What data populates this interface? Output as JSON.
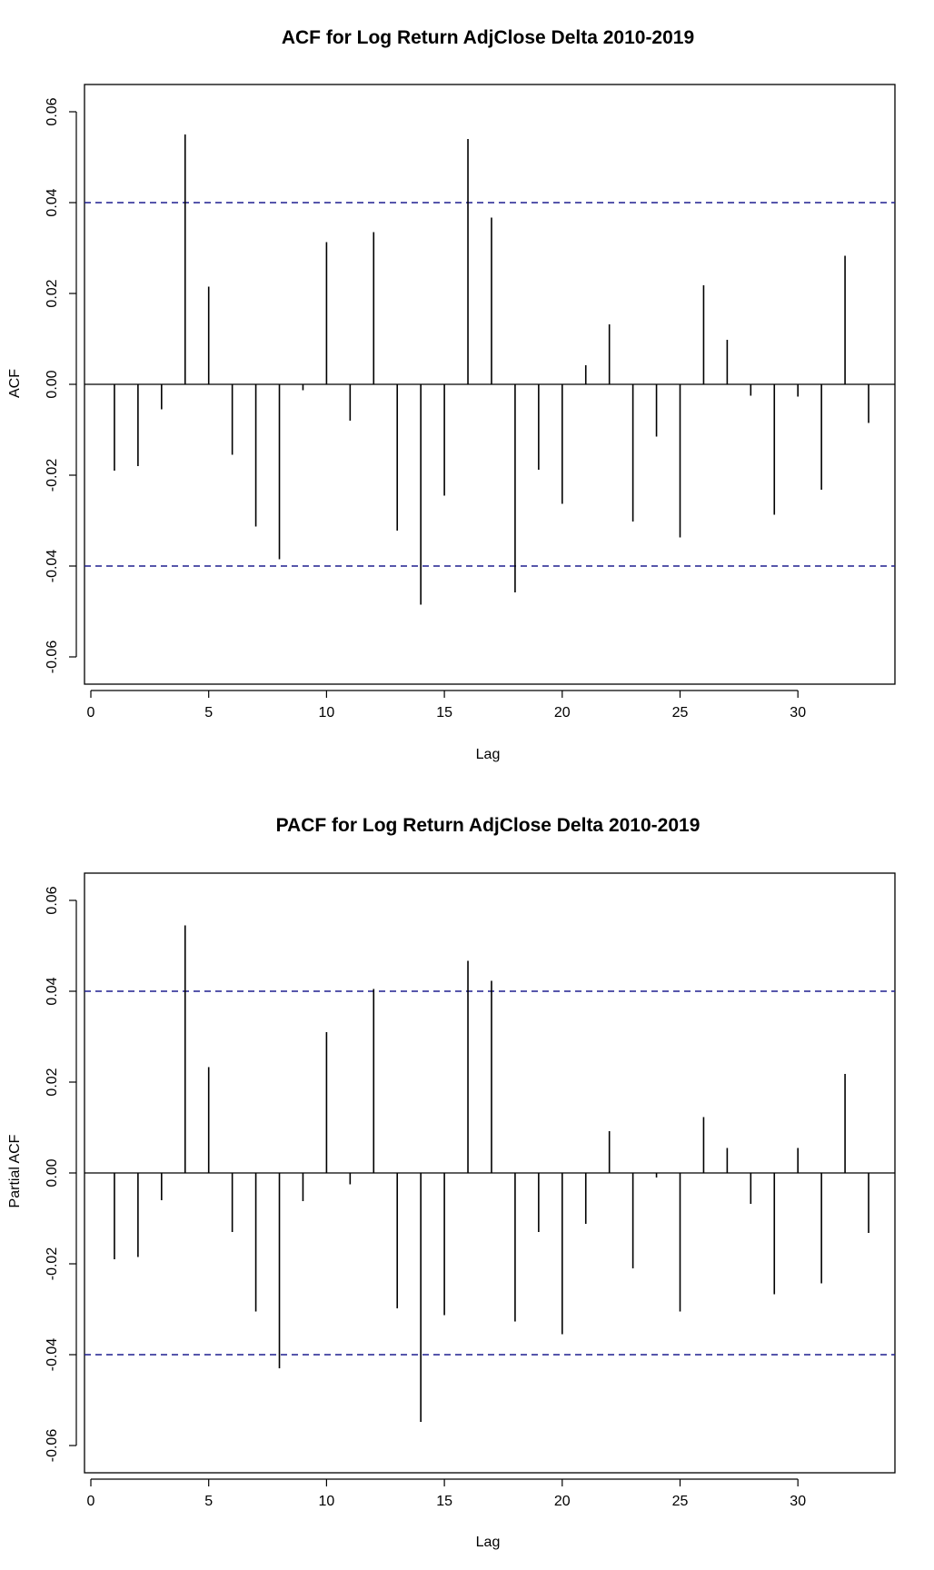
{
  "chart_data": [
    {
      "type": "bar",
      "title": "ACF for Log Return AdjClose Delta 2010-2019",
      "xlabel": "Lag",
      "ylabel": "ACF",
      "xlim": [
        0,
        33
      ],
      "ylim": [
        -0.065,
        0.065
      ],
      "x_ticks": [
        "0",
        "5",
        "10",
        "15",
        "20",
        "25",
        "30"
      ],
      "y_ticks": [
        "-0.06",
        "-0.04",
        "-0.02",
        "0.00",
        "0.02",
        "0.04",
        "0.06"
      ],
      "confidence_bounds": [
        0.04,
        -0.04
      ],
      "bound_color": "#1f1f8f",
      "bar_color": "#000000",
      "lags": [
        1,
        2,
        3,
        4,
        5,
        6,
        7,
        8,
        9,
        10,
        11,
        12,
        13,
        14,
        15,
        16,
        17,
        18,
        19,
        20,
        21,
        22,
        23,
        24,
        25,
        26,
        27,
        28,
        29,
        30,
        31,
        32,
        33
      ],
      "values": [
        -0.019,
        -0.018,
        -0.0055,
        0.055,
        0.0215,
        -0.0155,
        -0.0313,
        -0.0385,
        -0.0013,
        0.0313,
        -0.008,
        0.0335,
        -0.0322,
        -0.0485,
        -0.0245,
        0.054,
        0.0367,
        -0.0458,
        -0.0188,
        -0.0263,
        0.0042,
        0.0132,
        -0.0302,
        -0.0115,
        -0.0337,
        0.0218,
        0.0098,
        -0.0025,
        -0.0287,
        -0.0027,
        -0.0232,
        0.0283,
        -0.0085
      ]
    },
    {
      "type": "bar",
      "title": "PACF for Log Return AdjClose Delta 2010-2019",
      "xlabel": "Lag",
      "ylabel": "Partial ACF",
      "xlim": [
        0,
        33
      ],
      "ylim": [
        -0.065,
        0.065
      ],
      "x_ticks": [
        "0",
        "5",
        "10",
        "15",
        "20",
        "25",
        "30"
      ],
      "y_ticks": [
        "-0.06",
        "-0.04",
        "-0.02",
        "0.00",
        "0.02",
        "0.04",
        "0.06"
      ],
      "confidence_bounds": [
        0.04,
        -0.04
      ],
      "bound_color": "#1f1f8f",
      "bar_color": "#000000",
      "lags": [
        1,
        2,
        3,
        4,
        5,
        6,
        7,
        8,
        9,
        10,
        11,
        12,
        13,
        14,
        15,
        16,
        17,
        18,
        19,
        20,
        21,
        22,
        23,
        24,
        25,
        26,
        27,
        28,
        29,
        30,
        31,
        32,
        33
      ],
      "values": [
        -0.019,
        -0.0185,
        -0.006,
        0.0545,
        0.0233,
        -0.013,
        -0.0305,
        -0.043,
        -0.0062,
        0.031,
        -0.0025,
        0.0405,
        -0.0298,
        -0.0548,
        -0.0313,
        0.0467,
        0.0423,
        -0.0327,
        -0.013,
        -0.0355,
        -0.0112,
        0.0092,
        -0.021,
        -0.001,
        -0.0305,
        0.0123,
        0.0055,
        -0.0068,
        -0.0267,
        0.0055,
        -0.0243,
        0.0218,
        -0.0132
      ]
    }
  ]
}
